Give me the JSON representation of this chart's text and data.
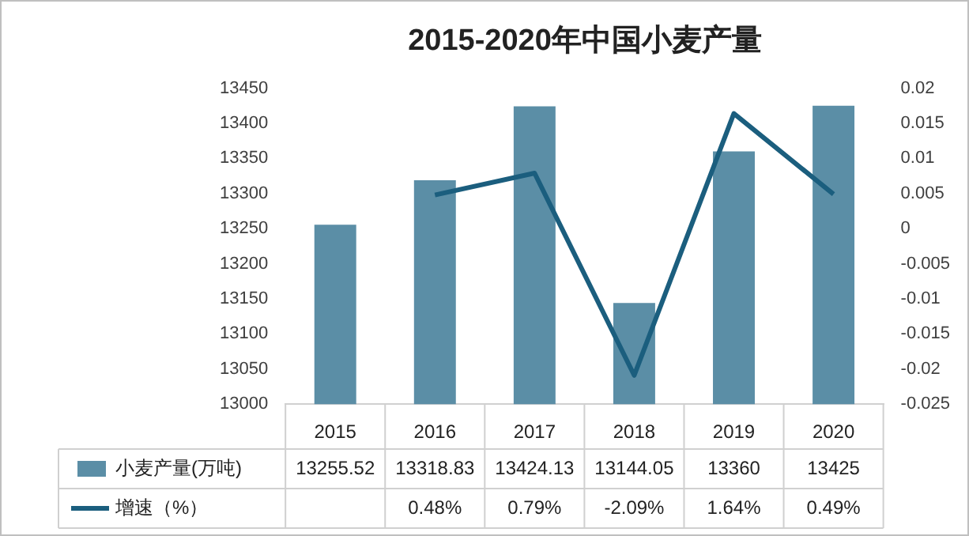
{
  "chart_data": {
    "type": "bar",
    "title": "2015-2020年中国小麦产量",
    "categories": [
      "2015",
      "2016",
      "2017",
      "2018",
      "2019",
      "2020"
    ],
    "series": [
      {
        "name": "小麦产量(万吨)",
        "color": "#5b8ea6",
        "values": [
          13255.52,
          13318.83,
          13424.13,
          13144.05,
          13360,
          13425
        ],
        "value_labels": [
          "13255.52",
          "13318.83",
          "13424.13",
          "13144.05",
          "13360",
          "13425"
        ]
      },
      {
        "name": "增速（%）",
        "type": "line",
        "axis": "y2",
        "color": "#1b5e7e",
        "values": [
          null,
          0.0048,
          0.0079,
          -0.0209,
          0.0164,
          0.0049
        ],
        "value_labels": [
          null,
          "0.48%",
          "0.79%",
          "-2.09%",
          "1.64%",
          "0.49%"
        ]
      }
    ],
    "ylim": [
      13000,
      13450
    ],
    "yticks": [
      13000,
      13050,
      13100,
      13150,
      13200,
      13250,
      13300,
      13350,
      13400,
      13450
    ],
    "y2lim": [
      -0.025,
      0.02
    ],
    "y2ticks": [
      -0.025,
      -0.02,
      -0.015,
      -0.01,
      -0.005,
      0,
      0.005,
      0.01,
      0.015,
      0.02
    ],
    "legend": "bottom",
    "marker": "none"
  }
}
